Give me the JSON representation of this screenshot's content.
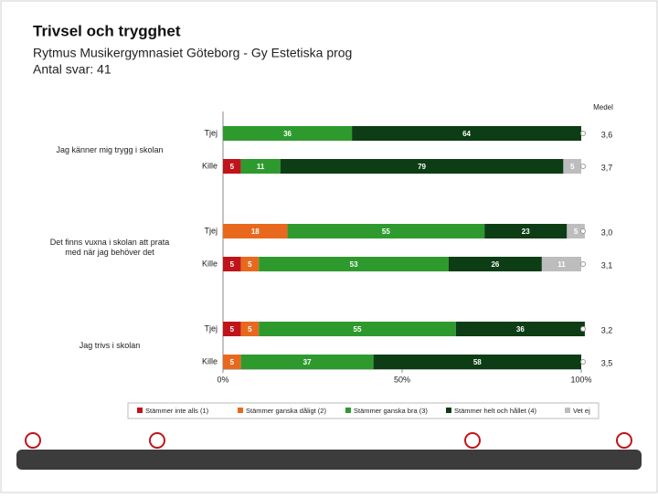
{
  "chart_data": {
    "type": "bar",
    "orientation": "horizontal",
    "stacked": true,
    "title": "Trivsel och trygghet",
    "subtitle": "Rytmus Musikergymnasiet Göteborg - Gy Estetiska prog",
    "note": "Antal svar: 41",
    "group_labels": [
      "Jag känner mig trygg i skolan",
      "Det finns vuxna i skolan att prata med när jag behöver det",
      "Jag trivs i skolan"
    ],
    "categories": [
      "Tjej",
      "Kille",
      "Tjej",
      "Kille",
      "Tjej",
      "Kille"
    ],
    "series": [
      {
        "name": "Stämmer inte alls (1)",
        "color": "#c0141c",
        "values": [
          null,
          5,
          0,
          5,
          5,
          null
        ]
      },
      {
        "name": "Stämmer ganska dåligt (2)",
        "color": "#e8691e",
        "values": [
          0,
          0,
          18,
          5,
          5,
          5
        ]
      },
      {
        "name": "Stämmer ganska bra (3)",
        "color": "#2e9a2e",
        "values": [
          36,
          11,
          55,
          53,
          55,
          37
        ]
      },
      {
        "name": "Stämmer helt och hållet (4)",
        "color": "#0c3d14",
        "values": [
          64,
          79,
          23,
          26,
          36,
          58
        ]
      },
      {
        "name": "Vet ej",
        "color": "#bdbdbd",
        "values": [
          null,
          5,
          5,
          11,
          null,
          null
        ]
      }
    ],
    "mean": {
      "name": "Medel",
      "values": [
        3.6,
        3.7,
        3.0,
        3.1,
        3.2,
        3.5
      ],
      "value_labels": [
        "3,6",
        "3,7",
        "3,0",
        "3,1",
        "3,2",
        "3,5"
      ]
    },
    "xlim": [
      0,
      100
    ],
    "xticks": [
      {
        "value": 0,
        "label": "0%"
      },
      {
        "value": 50,
        "label": "50%"
      },
      {
        "value": 100,
        "label": "100%"
      }
    ],
    "legend": "bottom"
  }
}
